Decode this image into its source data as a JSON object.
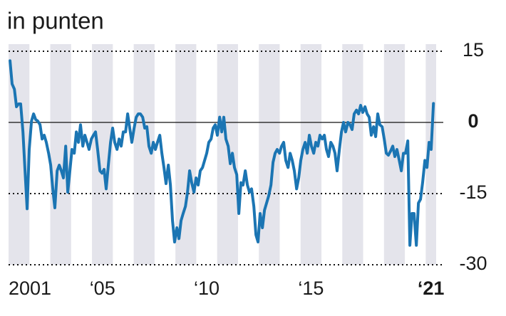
{
  "chart_data": {
    "type": "line",
    "title": "in punten",
    "x": [
      2001.07,
      2001.17,
      2001.28,
      2001.38,
      2001.48,
      2001.58,
      2001.69,
      2001.79,
      2001.89,
      2001.99,
      2002.1,
      2002.2,
      2002.3,
      2002.4,
      2002.51,
      2002.61,
      2002.71,
      2002.81,
      2002.92,
      2003.02,
      2003.12,
      2003.22,
      2003.33,
      2003.43,
      2003.53,
      2003.63,
      2003.74,
      2003.84,
      2003.94,
      2004.04,
      2004.15,
      2004.25,
      2004.35,
      2004.45,
      2004.56,
      2004.66,
      2004.76,
      2004.86,
      2004.97,
      2005.07,
      2005.17,
      2005.27,
      2005.38,
      2005.48,
      2005.58,
      2005.68,
      2005.79,
      2005.89,
      2005.99,
      2006.09,
      2006.2,
      2006.3,
      2006.4,
      2006.5,
      2006.61,
      2006.71,
      2006.81,
      2006.91,
      2007.02,
      2007.12,
      2007.22,
      2007.32,
      2007.43,
      2007.53,
      2007.63,
      2007.73,
      2007.84,
      2007.94,
      2008.04,
      2008.14,
      2008.25,
      2008.35,
      2008.45,
      2008.55,
      2008.66,
      2008.76,
      2008.86,
      2008.96,
      2009.07,
      2009.17,
      2009.27,
      2009.37,
      2009.48,
      2009.58,
      2009.68,
      2009.78,
      2009.89,
      2009.99,
      2010.09,
      2010.19,
      2010.3,
      2010.4,
      2010.5,
      2010.6,
      2010.71,
      2010.81,
      2010.91,
      2011.01,
      2011.12,
      2011.22,
      2011.32,
      2011.42,
      2011.53,
      2011.63,
      2011.73,
      2011.83,
      2011.94,
      2012.04,
      2012.14,
      2012.24,
      2012.35,
      2012.45,
      2012.55,
      2012.65,
      2012.76,
      2012.86,
      2012.96,
      2013.06,
      2013.17,
      2013.27,
      2013.37,
      2013.47,
      2013.58,
      2013.68,
      2013.78,
      2013.88,
      2013.99,
      2014.09,
      2014.19,
      2014.29,
      2014.4,
      2014.5,
      2014.6,
      2014.7,
      2014.81,
      2014.91,
      2015.01,
      2015.11,
      2015.22,
      2015.32,
      2015.42,
      2015.52,
      2015.63,
      2015.73,
      2015.83,
      2015.93,
      2016.04,
      2016.14,
      2016.24,
      2016.34,
      2016.45,
      2016.55,
      2016.65,
      2016.75,
      2016.86,
      2016.96,
      2017.06,
      2017.16,
      2017.27,
      2017.37,
      2017.47,
      2017.57,
      2017.68,
      2017.78,
      2017.88,
      2017.98,
      2018.09,
      2018.19,
      2018.29,
      2018.39,
      2018.5,
      2018.6,
      2018.7,
      2018.8,
      2018.91,
      2019.01,
      2019.11,
      2019.21,
      2019.32,
      2019.42,
      2019.52,
      2019.62,
      2019.73,
      2019.83,
      2019.93,
      2020.03,
      2020.14,
      2020.24,
      2020.34,
      2020.44,
      2020.55,
      2020.65,
      2020.75,
      2020.85,
      2020.96,
      2021.06,
      2021.16,
      2021.26,
      2021.37
    ],
    "series": [
      {
        "color": "#1b75b3",
        "values": [
          13.0,
          8.1,
          7.0,
          3.3,
          3.9,
          3.9,
          -2.0,
          -10.2,
          -18.2,
          -5.7,
          0.3,
          1.8,
          0.6,
          0.3,
          -0.5,
          -3.5,
          -2.7,
          -4.2,
          -6.5,
          -9.0,
          -14.0,
          -18.0,
          -10.2,
          -9.0,
          -10.2,
          -11.7,
          -5.0,
          -14.7,
          -10.2,
          -5.7,
          -6.5,
          -2.0,
          -4.2,
          -0.5,
          -5.0,
          -2.7,
          -4.2,
          -5.7,
          -3.5,
          -2.7,
          -2.0,
          -5.7,
          -10.2,
          -10.7,
          -9.9,
          -14.0,
          -8.7,
          -4.2,
          -1.2,
          -4.2,
          -5.7,
          -3.5,
          -5.0,
          -2.0,
          -2.0,
          1.8,
          -1.2,
          -4.2,
          -1.2,
          1.1,
          1.8,
          1.8,
          1.1,
          -1.2,
          -0.9,
          -5.0,
          -6.5,
          -4.2,
          -5.7,
          -4.2,
          -2.7,
          -6.5,
          -9.5,
          -12.9,
          -9.0,
          -13.2,
          -20.7,
          -25.2,
          -22.2,
          -24.5,
          -20.7,
          -19.2,
          -17.7,
          -14.7,
          -10.2,
          -12.7,
          -14.7,
          -11.7,
          -13.2,
          -10.2,
          -9.5,
          -8.0,
          -6.5,
          -4.2,
          -3.5,
          -1.2,
          -0.5,
          -2.7,
          1.1,
          -2.0,
          1.1,
          -3.5,
          -5.0,
          -8.7,
          -6.5,
          -9.5,
          -11.0,
          -19.2,
          -12.7,
          -13.2,
          -10.2,
          -13.2,
          -14.7,
          -14.0,
          -17.7,
          -23.7,
          -25.2,
          -19.2,
          -22.2,
          -18.5,
          -17.0,
          -15.5,
          -13.2,
          -8.4,
          -6.5,
          -5.7,
          -6.5,
          -5.0,
          -4.2,
          -8.0,
          -9.5,
          -6.5,
          -8.0,
          -10.2,
          -14.0,
          -11.7,
          -8.0,
          -5.7,
          -4.2,
          -6.5,
          -2.7,
          -5.0,
          -6.5,
          -4.2,
          -5.0,
          -2.7,
          -3.5,
          -2.7,
          -5.7,
          -7.2,
          -4.2,
          -5.0,
          -6.5,
          -10.2,
          -5.7,
          -2.0,
          0.0,
          -2.0,
          0.0,
          -0.5,
          -1.5,
          1.8,
          2.6,
          1.8,
          3.6,
          2.1,
          3.3,
          1.8,
          1.1,
          -2.7,
          -0.9,
          -3.0,
          1.8,
          -0.5,
          -0.9,
          -3.5,
          -6.5,
          -6.9,
          -6.0,
          -5.0,
          -7.2,
          -5.7,
          -8.0,
          -10.2,
          -6.5,
          -6.5,
          -3.9,
          -25.9,
          -19.2,
          -19.2,
          -25.9,
          -17.0,
          -16.2,
          -12.7,
          -8.0,
          -9.5,
          -4.2,
          -5.7,
          4.0
        ]
      }
    ],
    "xlim": [
      2001,
      2021.5
    ],
    "xticks": [
      {
        "value": 2001.5,
        "label": "2001"
      },
      {
        "value": 2005.5,
        "label": "‘05"
      },
      {
        "value": 2010.5,
        "label": "‘10"
      },
      {
        "value": 2015.5,
        "label": "‘15"
      },
      {
        "value": 2021.25,
        "label": "‘21"
      }
    ],
    "ylim": [
      -30,
      15
    ],
    "yticks": [
      15,
      0,
      -15,
      -30
    ],
    "grid": true
  }
}
